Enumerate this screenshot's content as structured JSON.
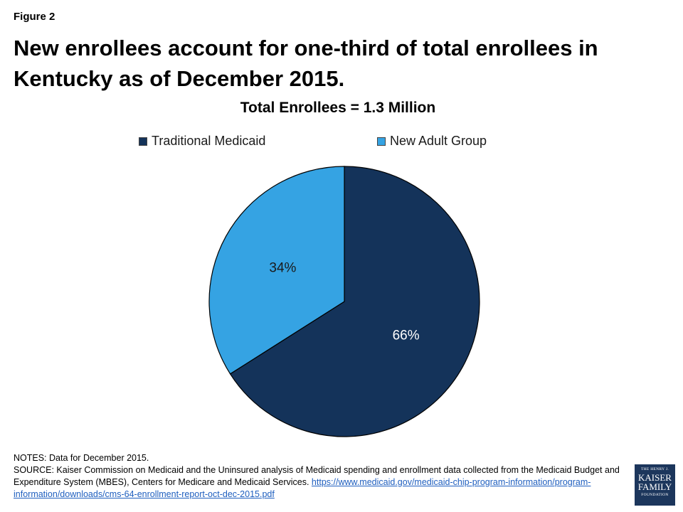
{
  "figure_label": "Figure 2",
  "headline": {
    "line1": "New enrollees account for one-third of total enrollees in",
    "line2": "Kentucky as of December 2015."
  },
  "chart_data": {
    "type": "pie",
    "title": "Total Enrollees = 1.3 Million",
    "slices": [
      {
        "name": "Traditional Medicaid",
        "value": 66,
        "label": "66%",
        "color": "#14335a"
      },
      {
        "name": "New Adult Group",
        "value": 34,
        "label": "34%",
        "color": "#35a3e3"
      }
    ],
    "legend_position": "top"
  },
  "notes": {
    "line1": "NOTES: Data for December 2015.",
    "source": "SOURCE: Kaiser Commission on Medicaid and the Uninsured analysis of Medicaid spending and enrollment data collected from the Medicaid Budget and Expenditure System (MBES), Centers for Medicare and Medicaid Services. ",
    "link": "https://www.medicaid.gov/medicaid-chip-program-information/program-information/downloads/cms-64-enrollment-report-oct-dec-2015.pdf"
  },
  "logo": {
    "line1": "THE HENRY J.",
    "line2": "KAISER",
    "line3": "FAMILY",
    "line4": "FOUNDATION"
  }
}
